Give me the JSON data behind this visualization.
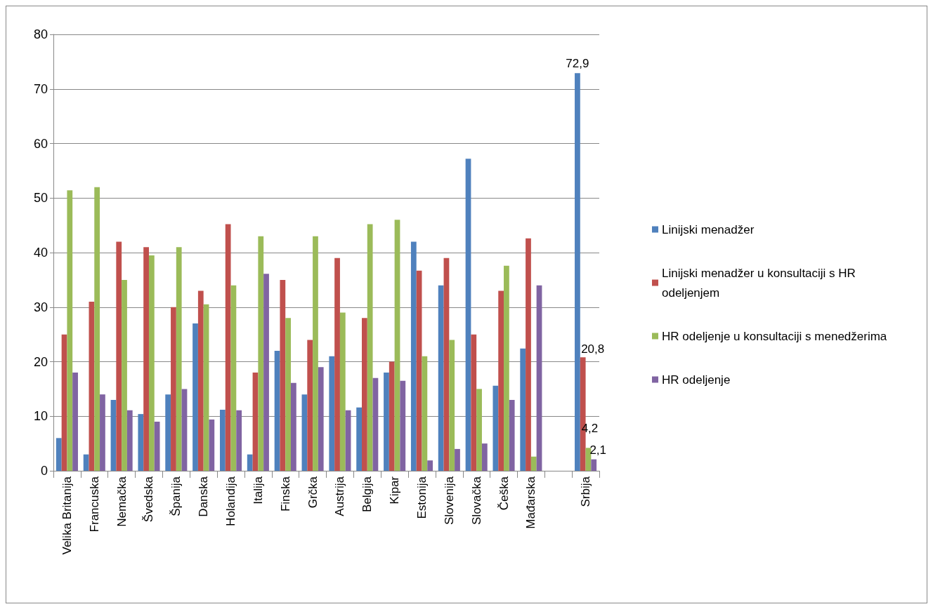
{
  "chart_data": {
    "type": "bar",
    "categories": [
      "Velika Britanija",
      "Francuska",
      "Nemačka",
      "Švedska",
      "Španija",
      "Danska",
      "Holandija",
      "Italija",
      "Finska",
      "Grčka",
      "Austrija",
      "Belgija",
      "Kipar",
      "Estonija",
      "Slovenija",
      "Slovačka",
      "Češka",
      "Mađarska",
      null,
      "Srbija"
    ],
    "series": [
      {
        "name": "Linijski menadžer",
        "color": "#4f81bd",
        "values": [
          6,
          3,
          13,
          10.4,
          14,
          27,
          11.2,
          3,
          22,
          14,
          21,
          11.6,
          18,
          42,
          34,
          57.2,
          15.6,
          22.4,
          null,
          72.9
        ],
        "value_labels": [
          null,
          null,
          null,
          null,
          null,
          null,
          null,
          null,
          null,
          null,
          null,
          null,
          null,
          null,
          null,
          null,
          null,
          null,
          null,
          "72,9"
        ]
      },
      {
        "name": "Linijski menadžer u konsultaciji s HR odeljenjem",
        "color": "#c0504d",
        "values": [
          25,
          31,
          42,
          41,
          30,
          33,
          45.2,
          18,
          35,
          24,
          39,
          28,
          20,
          36.7,
          39,
          25,
          33,
          42.6,
          null,
          20.8
        ],
        "value_labels": [
          null,
          null,
          null,
          null,
          null,
          null,
          null,
          null,
          null,
          null,
          null,
          null,
          null,
          null,
          null,
          null,
          null,
          null,
          null,
          "20,8"
        ]
      },
      {
        "name": "HR odeljenje u konsultaciji s menedžerima",
        "color": "#9bbb59",
        "values": [
          51.4,
          52,
          35,
          39.5,
          41,
          30.5,
          34,
          43,
          28,
          43,
          29,
          45.2,
          46,
          21,
          24,
          15,
          37.6,
          2.6,
          null,
          4.2
        ],
        "value_labels": [
          null,
          null,
          null,
          null,
          null,
          null,
          null,
          null,
          null,
          null,
          null,
          null,
          null,
          null,
          null,
          null,
          null,
          null,
          null,
          "4,2"
        ]
      },
      {
        "name": "HR odeljenje",
        "color": "#8064a2",
        "values": [
          18,
          14,
          11.1,
          9,
          15,
          9.4,
          11.1,
          36.1,
          16.1,
          19,
          11.1,
          17,
          16.5,
          1.9,
          4,
          5,
          13,
          34,
          null,
          2.1
        ],
        "value_labels": [
          null,
          null,
          null,
          null,
          null,
          null,
          null,
          null,
          null,
          null,
          null,
          null,
          null,
          null,
          null,
          null,
          null,
          null,
          null,
          "2,1"
        ]
      }
    ],
    "ylim": [
      0,
      80
    ],
    "yticks": [
      0,
      10,
      20,
      30,
      40,
      50,
      60,
      70,
      80
    ],
    "grid": "y",
    "legend": "right"
  }
}
